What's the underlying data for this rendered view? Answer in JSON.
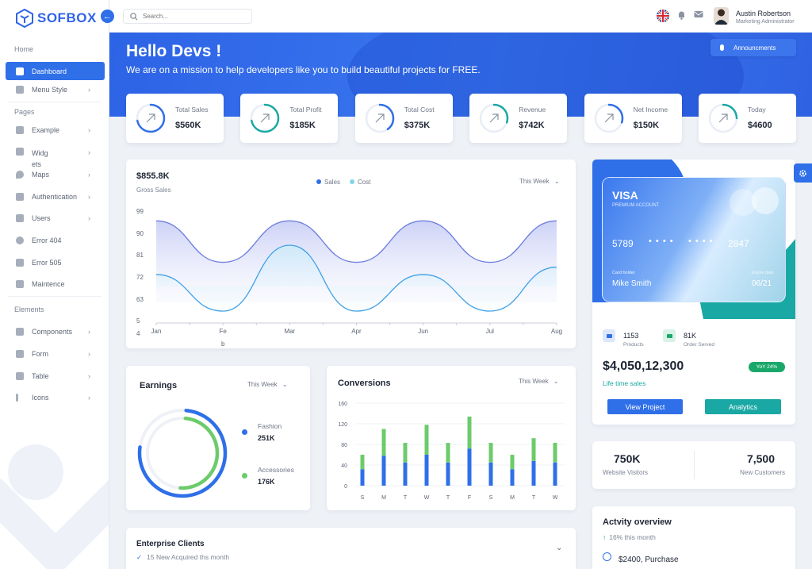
{
  "brand": {
    "name": "SOFBOX"
  },
  "search": {
    "placeholder": "Search..."
  },
  "user": {
    "name": "Austin Robertson",
    "role": "Marketing Administrator"
  },
  "sidebar": {
    "sections": [
      "Home",
      "Pages",
      "Elements"
    ],
    "items": [
      {
        "label": "Dashboard",
        "icon": "grid-icon"
      },
      {
        "label": "Menu Style",
        "icon": "menu-icon"
      },
      {
        "label": "Example",
        "icon": "example-icon"
      },
      {
        "label": "Widg",
        "label2": "ets",
        "icon": "widget-icon"
      },
      {
        "label": "Maps",
        "icon": "map-pin-icon"
      },
      {
        "label": "Authentication",
        "icon": "shield-icon"
      },
      {
        "label": "Users",
        "icon": "users-icon"
      },
      {
        "label": "Error 404",
        "icon": "error-icon"
      },
      {
        "label": "Error 505",
        "icon": "warning-icon"
      },
      {
        "label": "Maintence",
        "icon": "tools-icon"
      },
      {
        "label": "Components",
        "icon": "components-icon"
      },
      {
        "label": "Form",
        "icon": "form-icon"
      },
      {
        "label": "Table",
        "icon": "table-icon"
      },
      {
        "label": "Icons",
        "icon": "info-icon"
      }
    ]
  },
  "hero": {
    "title": "Hello Devs !",
    "subtitle": "We are on a mission to help developers like you to build beautiful projects for FREE.",
    "announce_label": "Announcments"
  },
  "stats": [
    {
      "label": "Total Sales",
      "value": "$560K",
      "color": "#2f6fe8",
      "progress": 0.72
    },
    {
      "label": "Total Profit",
      "value": "$185K",
      "color": "#1aa8a4",
      "progress": 0.72
    },
    {
      "label": "Total Cost",
      "value": "$375K",
      "color": "#2f6fe8",
      "progress": 0.4
    },
    {
      "label": "Revenue",
      "value": "$742K",
      "color": "#1aa8a4",
      "progress": 0.3
    },
    {
      "label": "Net Income",
      "value": "$150K",
      "color": "#2f6fe8",
      "progress": 0.3
    },
    {
      "label": "Today",
      "value": "$4600",
      "color": "#1aa8a4",
      "progress": 0.25
    }
  ],
  "gross": {
    "value": "$855.8K",
    "label": "Gross Sales",
    "legend": [
      "Sales",
      "Cost"
    ],
    "range": "This Week"
  },
  "earnings": {
    "title": "Earnings",
    "range": "This Week",
    "legend": [
      {
        "name": "Fashion",
        "value": "251K"
      },
      {
        "name": "Accessories",
        "value": "176K"
      }
    ]
  },
  "conversions": {
    "title": "Conversions",
    "range": "This Week"
  },
  "visa": {
    "brand": "VISA",
    "account": "PREMIUM ACCOUNT",
    "num_first": "5789",
    "num_mid1": "• • • •",
    "num_mid2": "• • • •",
    "num_last": "2847",
    "holder_label": "Card holder",
    "holder": "Mike Smith",
    "expire_label": "Expire date",
    "expire": "06/21"
  },
  "sales_summary": {
    "products": "1153",
    "products_label": "Products",
    "orders": "81K",
    "orders_label": "Order Served",
    "lifetime": "$4,050,12,300",
    "lifetime_label": "Life time sales",
    "badge": "YoY 24%",
    "view_btn": "View Project",
    "analytics_btn": "Analytics"
  },
  "visitors": {
    "visitors": "750K",
    "visitors_label": "Website Visitors",
    "customers": "7,500",
    "customers_label": "New Customers"
  },
  "enterprise": {
    "title": "Enterprise Clients",
    "sub": "15 New Acquired ths month"
  },
  "activity": {
    "title": "Actvity overview",
    "growth": "16% this month",
    "item": "$2400, Purchase"
  },
  "chart_data": [
    {
      "type": "line",
      "title": "Gross Sales",
      "categories": [
        "Jan",
        "Feb",
        "Mar",
        "Apr",
        "Jun",
        "Jul",
        "Aug"
      ],
      "yticks": [
        99,
        90,
        81,
        72,
        63,
        5,
        4
      ],
      "series": [
        {
          "name": "Sales",
          "color": "#6e7fe0",
          "values": [
            95,
            78,
            95,
            78,
            95,
            78,
            95
          ]
        },
        {
          "name": "Cost",
          "color": "#3fa0e8",
          "values": [
            73,
            58,
            85,
            58,
            73,
            58,
            76
          ]
        }
      ]
    },
    {
      "type": "bar",
      "title": "Conversions",
      "categories": [
        "S",
        "M",
        "T",
        "W",
        "T",
        "F",
        "S",
        "M",
        "T",
        "W"
      ],
      "yticks": [
        160,
        120,
        80,
        40,
        0
      ],
      "ylim": [
        0,
        160
      ],
      "series": [
        {
          "name": "blue",
          "color": "#2f6fe8",
          "values": [
            32,
            58,
            45,
            60,
            45,
            72,
            45,
            32,
            48,
            45
          ]
        },
        {
          "name": "green",
          "color": "#6ccb6b",
          "values": [
            28,
            52,
            38,
            58,
            38,
            62,
            38,
            28,
            44,
            38
          ]
        }
      ]
    },
    {
      "type": "pie",
      "title": "Earnings",
      "series": [
        {
          "name": "Fashion",
          "value": 251,
          "color": "#2f6fe8"
        },
        {
          "name": "Accessories",
          "value": 176,
          "color": "#6ccb6b"
        }
      ]
    }
  ]
}
